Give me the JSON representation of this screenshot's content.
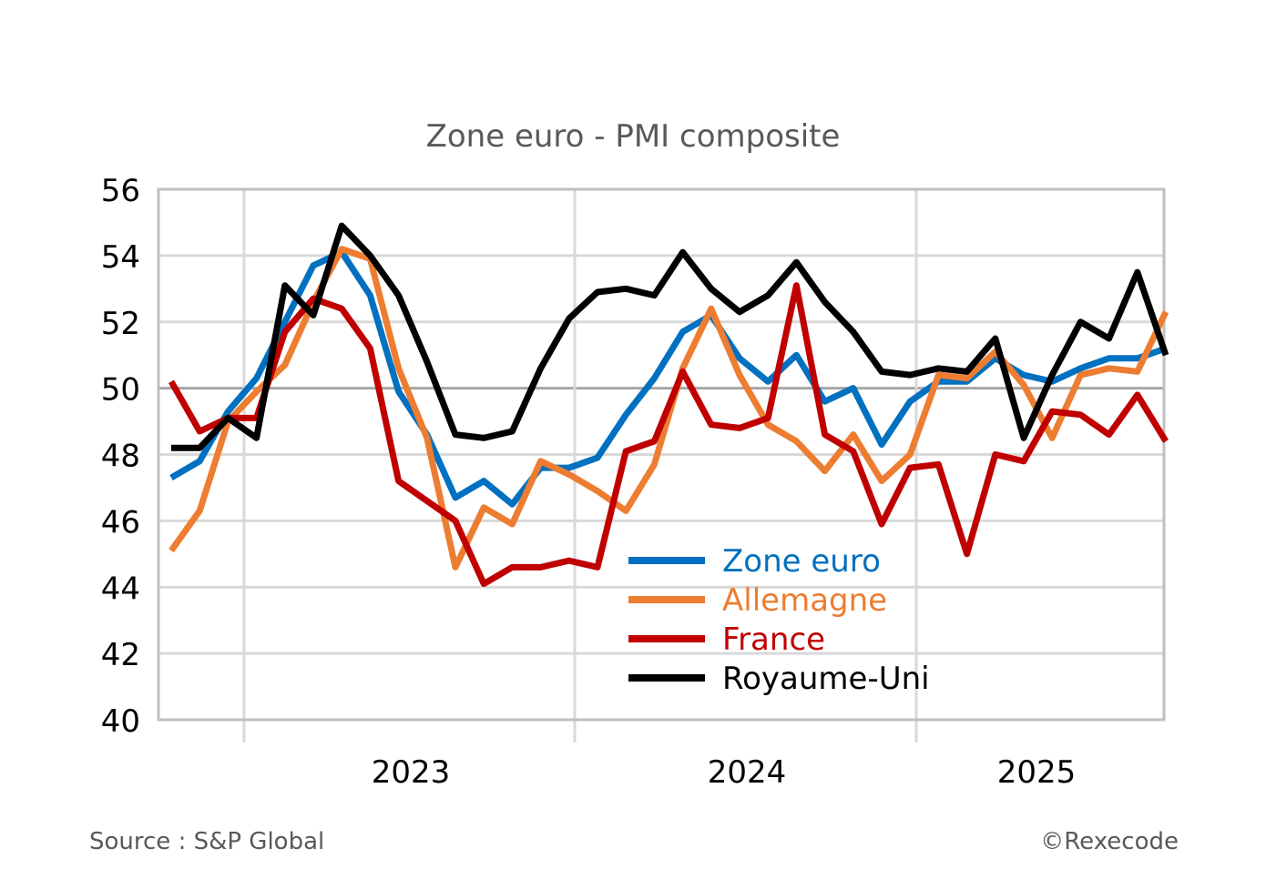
{
  "chart_data": {
    "type": "line",
    "title": "Zone euro - PMI composite",
    "xlabel": "",
    "ylabel": "",
    "ylim": [
      40,
      56
    ],
    "yticks": [
      40,
      42,
      44,
      46,
      48,
      50,
      52,
      54,
      56
    ],
    "xticks": [
      "2023",
      "2024",
      "2025"
    ],
    "reference_line": 50,
    "grid": true,
    "legend_position": "bottom-center",
    "series": [
      {
        "name": "Zone euro",
        "color": "#0070C0",
        "values": [
          47.3,
          47.8,
          49.3,
          50.3,
          52.0,
          53.7,
          54.1,
          52.8,
          49.9,
          48.6,
          46.7,
          47.2,
          46.5,
          47.6,
          47.6,
          47.9,
          49.2,
          50.3,
          51.7,
          52.2,
          50.9,
          50.2,
          51.0,
          49.6,
          50.0,
          48.3,
          49.6,
          50.2,
          50.2,
          50.9,
          50.4,
          50.2,
          50.6,
          50.9,
          50.9,
          51.2
        ]
      },
      {
        "name": "Allemagne",
        "color": "#ED7D31",
        "values": [
          45.1,
          46.3,
          49.0,
          49.9,
          50.7,
          52.6,
          54.2,
          53.9,
          50.6,
          48.5,
          44.6,
          46.4,
          45.9,
          47.8,
          47.4,
          46.9,
          46.3,
          47.7,
          50.6,
          52.4,
          50.4,
          48.9,
          48.4,
          47.5,
          48.6,
          47.2,
          48.0,
          50.4,
          50.3,
          51.1,
          50.1,
          48.5,
          50.4,
          50.6,
          50.5,
          52.3
        ]
      },
      {
        "name": "France",
        "color": "#C00000",
        "values": [
          50.2,
          48.7,
          49.1,
          49.1,
          51.7,
          52.7,
          52.4,
          51.2,
          47.2,
          46.6,
          46.0,
          44.1,
          44.6,
          44.6,
          44.8,
          44.6,
          48.1,
          48.4,
          50.5,
          48.9,
          48.8,
          49.1,
          53.1,
          48.6,
          48.1,
          45.9,
          47.6,
          47.7,
          45.0,
          48.0,
          47.8,
          49.3,
          49.2,
          48.6,
          49.8,
          48.4
        ]
      },
      {
        "name": "Royaume-Uni",
        "color": "#000000",
        "values": [
          48.2,
          48.2,
          49.1,
          48.5,
          53.1,
          52.2,
          54.9,
          54.0,
          52.8,
          50.8,
          48.6,
          48.5,
          48.7,
          50.6,
          52.1,
          52.9,
          53.0,
          52.8,
          54.1,
          53.0,
          52.3,
          52.8,
          53.8,
          52.6,
          51.7,
          50.5,
          50.4,
          50.6,
          50.5,
          51.5,
          48.5,
          50.4,
          52.0,
          51.5,
          53.5,
          51.0
        ]
      }
    ]
  },
  "footer": {
    "source": "Source : S&P Global",
    "copyright": "©Rexecode"
  }
}
